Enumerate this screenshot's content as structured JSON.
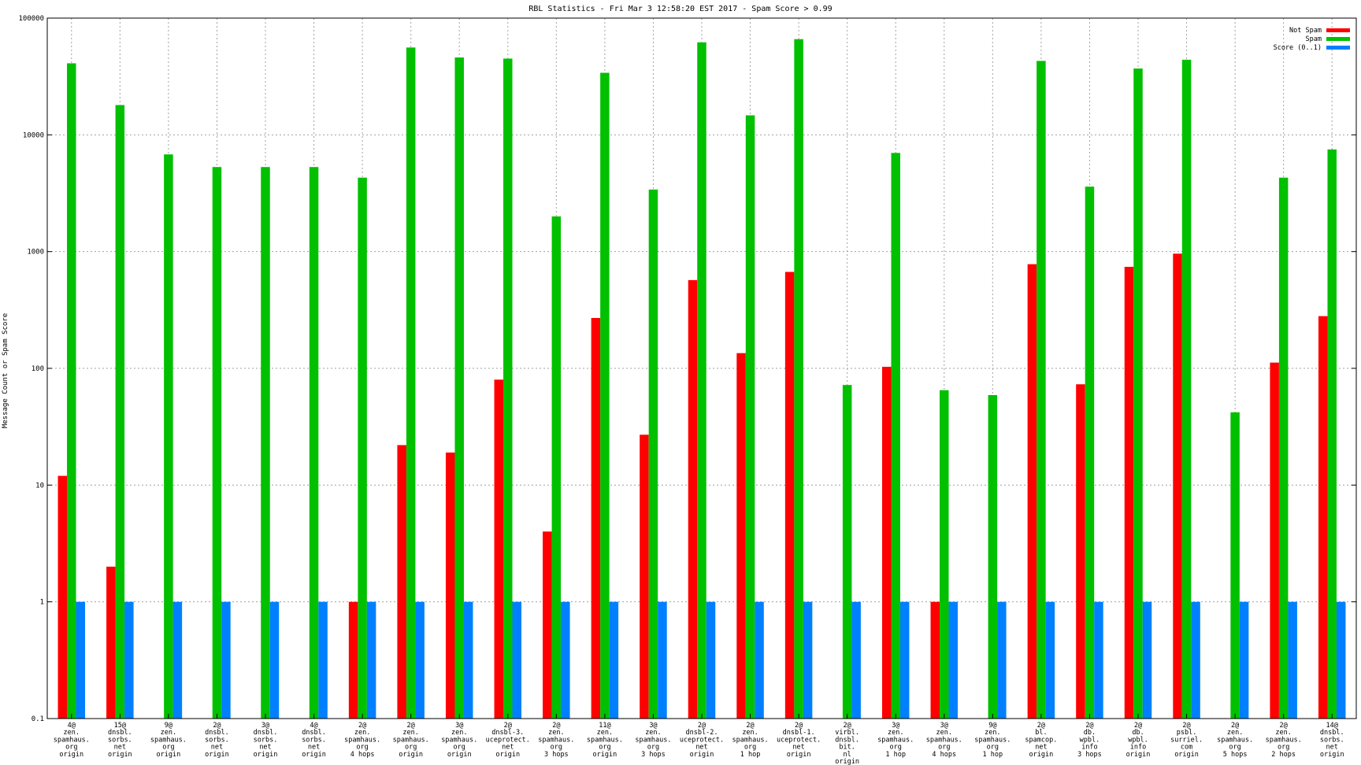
{
  "chart_data": {
    "type": "bar",
    "title": "RBL Statistics - Fri Mar  3 12:58:20 EST 2017 - Spam Score > 0.99",
    "ylabel": "Message Count or Spam Score",
    "xlabel": "",
    "yscale": "log",
    "ylim": [
      0.1,
      100000
    ],
    "y_ticks": [
      "0.1",
      "1",
      "10",
      "100",
      "1000",
      "10000",
      "100000"
    ],
    "grid": true,
    "legend_position": "top-right",
    "categories": [
      [
        "4@",
        "zen.",
        "spamhaus.",
        "org",
        "origin"
      ],
      [
        "15@",
        "dnsbl.",
        "sorbs.",
        "net",
        "origin"
      ],
      [
        "9@",
        "zen.",
        "spamhaus.",
        "org",
        "origin"
      ],
      [
        "2@",
        "dnsbl.",
        "sorbs.",
        "net",
        "origin"
      ],
      [
        "3@",
        "dnsbl.",
        "sorbs.",
        "net",
        "origin"
      ],
      [
        "4@",
        "dnsbl.",
        "sorbs.",
        "net",
        "origin"
      ],
      [
        "2@",
        "zen.",
        "spamhaus.",
        "org",
        "4 hops"
      ],
      [
        "2@",
        "zen.",
        "spamhaus.",
        "org",
        "origin"
      ],
      [
        "3@",
        "zen.",
        "spamhaus.",
        "org",
        "origin"
      ],
      [
        "2@",
        "dnsbl-3.",
        "uceprotect.",
        "net",
        "origin"
      ],
      [
        "2@",
        "zen.",
        "spamhaus.",
        "org",
        "3 hops"
      ],
      [
        "11@",
        "zen.",
        "spamhaus.",
        "org",
        "origin"
      ],
      [
        "3@",
        "zen.",
        "spamhaus.",
        "org",
        "3 hops"
      ],
      [
        "2@",
        "dnsbl-2.",
        "uceprotect.",
        "net",
        "origin"
      ],
      [
        "2@",
        "zen.",
        "spamhaus.",
        "org",
        "1 hop"
      ],
      [
        "2@",
        "dnsbl-1.",
        "uceprotect.",
        "net",
        "origin"
      ],
      [
        "2@",
        "virbl.",
        "dnsbl.",
        "bit.",
        "nl",
        "origin"
      ],
      [
        "3@",
        "zen.",
        "spamhaus.",
        "org",
        "1 hop"
      ],
      [
        "3@",
        "zen.",
        "spamhaus.",
        "org",
        "4 hops"
      ],
      [
        "9@",
        "zen.",
        "spamhaus.",
        "org",
        "1 hop"
      ],
      [
        "2@",
        "bl.",
        "spamcop.",
        "net",
        "origin"
      ],
      [
        "2@",
        "db.",
        "wpbl.",
        "info",
        "3 hops"
      ],
      [
        "2@",
        "db.",
        "wpbl.",
        "info",
        "origin"
      ],
      [
        "2@",
        "psbl.",
        "surriel.",
        "com",
        "origin"
      ],
      [
        "2@",
        "zen.",
        "spamhaus.",
        "org",
        "5 hops"
      ],
      [
        "2@",
        "zen.",
        "spamhaus.",
        "org",
        "2 hops"
      ],
      [
        "14@",
        "dnsbl.",
        "sorbs.",
        "net",
        "origin"
      ]
    ],
    "series": [
      {
        "name": "Not Spam",
        "color": "#ff0000",
        "values": [
          12,
          2,
          null,
          null,
          null,
          null,
          1,
          22,
          19,
          80,
          4,
          270,
          27,
          570,
          135,
          670,
          null,
          103,
          1,
          null,
          780,
          73,
          740,
          960,
          null,
          112,
          280
        ]
      },
      {
        "name": "Spam",
        "color": "#00c000",
        "values": [
          41000,
          18000,
          6800,
          5300,
          5300,
          5300,
          4300,
          56000,
          46000,
          45000,
          2000,
          34000,
          3400,
          62000,
          14700,
          66000,
          72,
          7000,
          65,
          59,
          43000,
          3600,
          37000,
          44000,
          42,
          4300,
          7500
        ]
      },
      {
        "name": "Score (0..1)",
        "color": "#0080ff",
        "values": [
          1,
          1,
          1,
          1,
          1,
          1,
          1,
          1,
          1,
          1,
          1,
          1,
          1,
          1,
          1,
          1,
          1,
          1,
          1,
          1,
          1,
          1,
          1,
          1,
          1,
          1,
          1
        ]
      }
    ]
  }
}
